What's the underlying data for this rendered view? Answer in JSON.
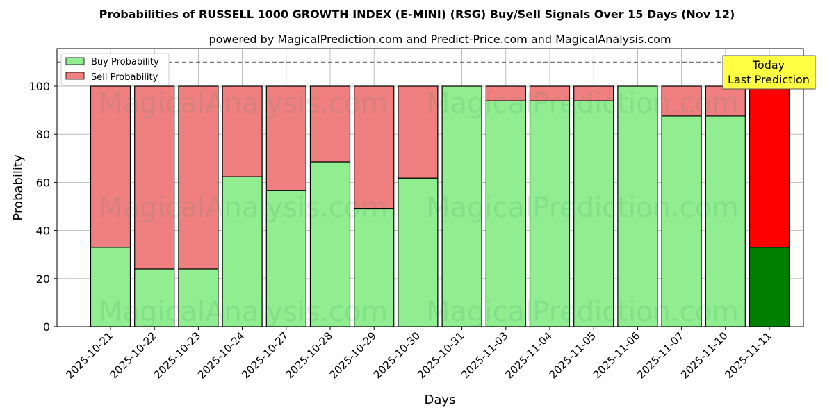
{
  "chart_data": {
    "type": "bar",
    "stacked": true,
    "title": "Probabilities of RUSSELL 1000 GROWTH INDEX (E-MINI) (RSG) Buy/Sell Signals Over 15 Days (Nov 12)",
    "subtitle": "powered by MagicalPrediction.com and Predict-Price.com and MagicalAnalysis.com",
    "xlabel": "Days",
    "ylabel": "Probability",
    "ylim": [
      0,
      115
    ],
    "yticks": [
      0,
      20,
      40,
      60,
      80,
      100
    ],
    "grid": true,
    "reference_line": 110,
    "categories": [
      "2025-10-21",
      "2025-10-22",
      "2025-10-23",
      "2025-10-24",
      "2025-10-27",
      "2025-10-28",
      "2025-10-29",
      "2025-10-30",
      "2025-10-31",
      "2025-11-03",
      "2025-11-04",
      "2025-11-05",
      "2025-11-06",
      "2025-11-07",
      "2025-11-10",
      "2025-11-11"
    ],
    "series": [
      {
        "name": "Buy Probability",
        "color": "#90ee90",
        "values": [
          33,
          24,
          24,
          62.4,
          56.6,
          68.5,
          49,
          61.8,
          100,
          93.9,
          93.9,
          93.9,
          100,
          87.6,
          87.6,
          33
        ]
      },
      {
        "name": "Sell Probability",
        "color": "#f08080",
        "values": [
          67,
          76,
          76,
          37.6,
          43.4,
          31.5,
          51,
          38.2,
          0,
          6.1,
          6.1,
          6.1,
          0,
          12.4,
          12.4,
          67
        ]
      }
    ],
    "highlight": {
      "index": 15,
      "buy_color": "#008000",
      "sell_color": "#ff0000"
    },
    "legend": {
      "placement": "top-left",
      "entries": [
        "Buy Probability",
        "Sell Probability"
      ]
    },
    "annotation": {
      "lines": [
        "Today",
        "Last Prediction"
      ],
      "color": "#ffff44"
    },
    "watermarks": [
      "MagicalAnalysis.com",
      "MagicalPrediction.com"
    ]
  }
}
